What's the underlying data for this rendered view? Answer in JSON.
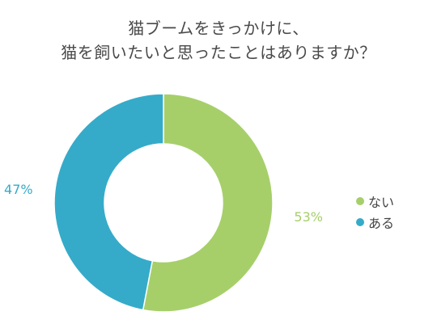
{
  "chart_data": {
    "type": "pie",
    "variant": "donut",
    "title_lines": [
      "猫ブームをきっかけに、",
      "猫を飼いたいと思ったことはありますか？"
    ],
    "categories": [
      "ない",
      "ある"
    ],
    "values": [
      53,
      47
    ],
    "data_labels": [
      "53%",
      "47%"
    ],
    "colors": [
      "#a6cf6a",
      "#35abc9"
    ],
    "legend": {
      "position": "right",
      "entries": [
        "ない",
        "ある"
      ]
    },
    "start_angle": "12 o'clock",
    "direction": "clockwise"
  }
}
